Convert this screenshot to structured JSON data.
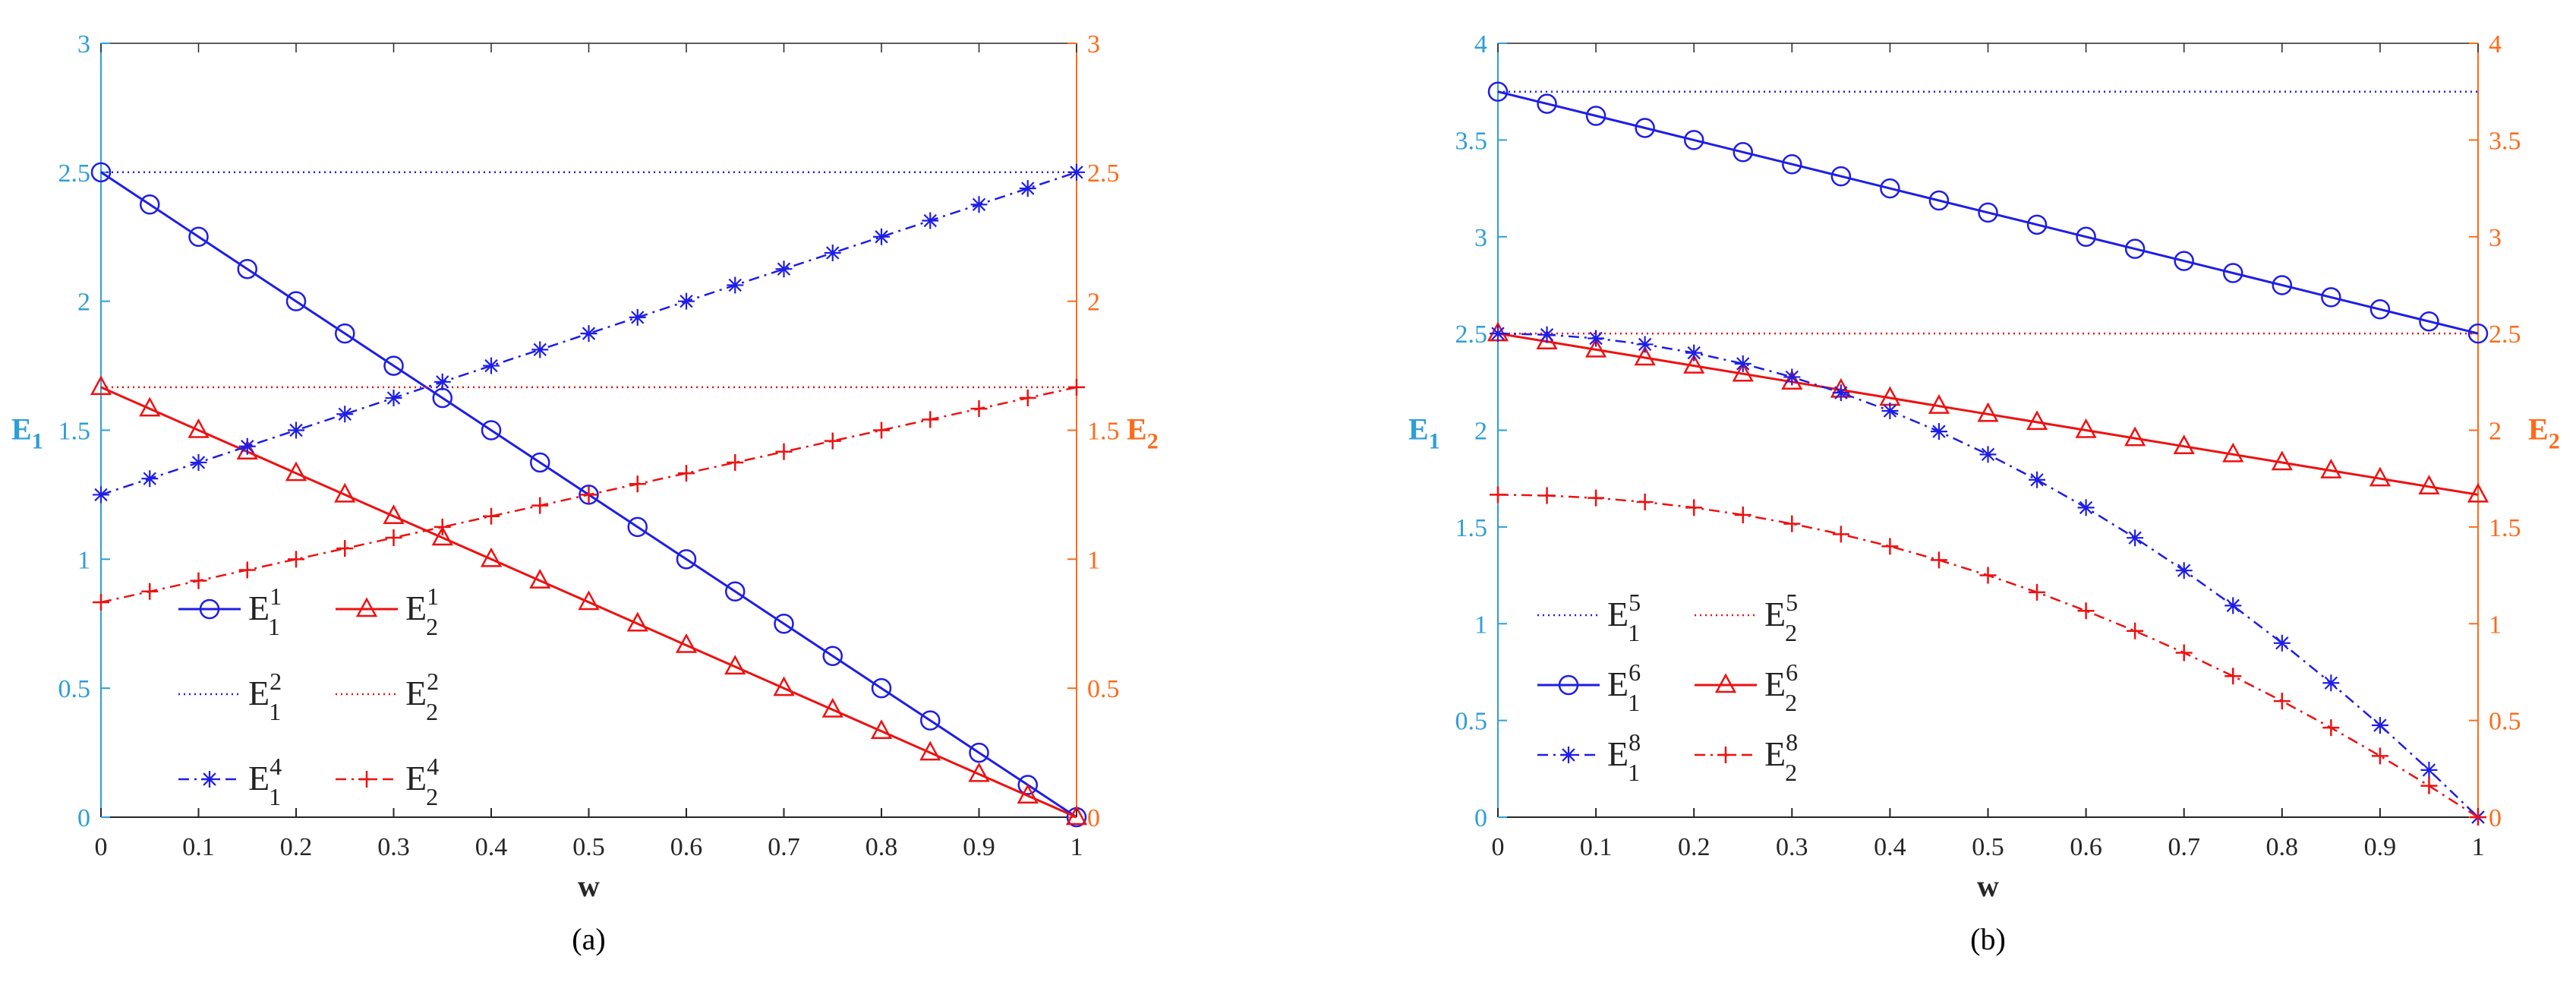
{
  "colors": {
    "left_axis": "#2e9ed8",
    "right_axis": "#ff6a1a",
    "blue": "#1e1ee6",
    "red": "#ee1111",
    "axis": "#262626"
  },
  "chart_data": [
    {
      "type": "line",
      "panel_label": "(a)",
      "xlabel": "w",
      "ylabel_left": "E",
      "ylabel_left_sub": "1",
      "ylabel_right": "E",
      "ylabel_right_sub": "2",
      "xlim": [
        0,
        1
      ],
      "ylim_left": [
        0,
        3
      ],
      "ylim_right": [
        0,
        3
      ],
      "xticks": [
        0,
        0.1,
        0.2,
        0.3,
        0.4,
        0.5,
        0.6,
        0.7,
        0.8,
        0.9,
        1
      ],
      "xtick_labels": [
        "0",
        "0.1",
        "0.2",
        "0.3",
        "0.4",
        "0.5",
        "0.6",
        "0.7",
        "0.8",
        "0.9",
        "1"
      ],
      "yticks_left": [
        0,
        0.5,
        1,
        1.5,
        2,
        2.5,
        3
      ],
      "ytick_labels_left": [
        "0",
        "0.5",
        "1",
        "1.5",
        "2",
        "2.5",
        "3"
      ],
      "yticks_right": [
        0,
        0.5,
        1,
        1.5,
        2,
        2.5,
        3
      ],
      "ytick_labels_right": [
        "0",
        "0.5",
        "1",
        "1.5",
        "2",
        "2.5",
        "3"
      ],
      "legend_position": "lower-left",
      "series": [
        {
          "base": "E",
          "sub": "1",
          "sup": "1",
          "color": "blue",
          "style": "solid",
          "marker": "circle",
          "x_start": 0,
          "x_end": 1,
          "x_step": 0.05,
          "func": "linear",
          "y_start": 2.5,
          "y_end": 0
        },
        {
          "base": "E",
          "sub": "2",
          "sup": "1",
          "color": "red",
          "style": "solid",
          "marker": "triangle",
          "x_start": 0,
          "x_end": 1,
          "x_step": 0.05,
          "func": "linear",
          "y_start": 1.6667,
          "y_end": 0
        },
        {
          "base": "E",
          "sub": "1",
          "sup": "2",
          "color": "blue",
          "style": "dotted",
          "marker": "none",
          "x_start": 0,
          "x_end": 1,
          "x_step": 0.05,
          "func": "linear",
          "y_start": 2.5,
          "y_end": 2.5
        },
        {
          "base": "E",
          "sub": "2",
          "sup": "2",
          "color": "red",
          "style": "dotted",
          "marker": "none",
          "x_start": 0,
          "x_end": 1,
          "x_step": 0.05,
          "func": "linear",
          "y_start": 1.6667,
          "y_end": 1.6667
        },
        {
          "base": "E",
          "sub": "1",
          "sup": "4",
          "color": "blue",
          "style": "dashdot",
          "marker": "star",
          "x_start": 0,
          "x_end": 1,
          "x_step": 0.05,
          "func": "linear",
          "y_start": 1.25,
          "y_end": 2.5
        },
        {
          "base": "E",
          "sub": "2",
          "sup": "4",
          "color": "red",
          "style": "dashdot",
          "marker": "plus",
          "x_start": 0,
          "x_end": 1,
          "x_step": 0.05,
          "func": "linear",
          "y_start": 0.8333,
          "y_end": 1.6667
        }
      ]
    },
    {
      "type": "line",
      "panel_label": "(b)",
      "xlabel": "w",
      "ylabel_left": "E",
      "ylabel_left_sub": "1",
      "ylabel_right": "E",
      "ylabel_right_sub": "2",
      "xlim": [
        0,
        1
      ],
      "ylim_left": [
        0,
        4
      ],
      "ylim_right": [
        0,
        4
      ],
      "xticks": [
        0,
        0.1,
        0.2,
        0.3,
        0.4,
        0.5,
        0.6,
        0.7,
        0.8,
        0.9,
        1
      ],
      "xtick_labels": [
        "0",
        "0.1",
        "0.2",
        "0.3",
        "0.4",
        "0.5",
        "0.6",
        "0.7",
        "0.8",
        "0.9",
        "1"
      ],
      "yticks_left": [
        0,
        0.5,
        1,
        1.5,
        2,
        2.5,
        3,
        3.5,
        4
      ],
      "ytick_labels_left": [
        "0",
        "0.5",
        "1",
        "1.5",
        "2",
        "2.5",
        "3",
        "3.5",
        "4"
      ],
      "yticks_right": [
        0,
        0.5,
        1,
        1.5,
        2,
        2.5,
        3,
        3.5,
        4
      ],
      "ytick_labels_right": [
        "0",
        "0.5",
        "1",
        "1.5",
        "2",
        "2.5",
        "3",
        "3.5",
        "4"
      ],
      "legend_position": "lower-left",
      "series": [
        {
          "base": "E",
          "sub": "1",
          "sup": "5",
          "color": "blue",
          "style": "dotted",
          "marker": "none",
          "x_start": 0,
          "x_end": 1,
          "x_step": 0.05,
          "func": "linear",
          "y_start": 3.75,
          "y_end": 3.75
        },
        {
          "base": "E",
          "sub": "2",
          "sup": "5",
          "color": "red",
          "style": "dotted",
          "marker": "none",
          "x_start": 0,
          "x_end": 1,
          "x_step": 0.05,
          "func": "linear",
          "y_start": 2.5,
          "y_end": 2.5
        },
        {
          "base": "E",
          "sub": "1",
          "sup": "6",
          "color": "blue",
          "style": "solid",
          "marker": "circle",
          "x_start": 0,
          "x_end": 1,
          "x_step": 0.05,
          "func": "linear",
          "y_start": 3.75,
          "y_end": 2.5
        },
        {
          "base": "E",
          "sub": "2",
          "sup": "6",
          "color": "red",
          "style": "solid",
          "marker": "triangle",
          "x_start": 0,
          "x_end": 1,
          "x_step": 0.05,
          "func": "linear",
          "y_start": 2.5,
          "y_end": 1.6667
        },
        {
          "base": "E",
          "sub": "1",
          "sup": "8",
          "color": "blue",
          "style": "dashdot",
          "marker": "star",
          "x_start": 0,
          "x_end": 1,
          "x_step": 0.05,
          "func": "quadratic",
          "y_start": 2.5,
          "y_end": 0
        },
        {
          "base": "E",
          "sub": "2",
          "sup": "8",
          "color": "red",
          "style": "dashdot",
          "marker": "plus",
          "x_start": 0,
          "x_end": 1,
          "x_step": 0.05,
          "func": "quadratic",
          "y_start": 1.6667,
          "y_end": 0
        }
      ]
    }
  ]
}
